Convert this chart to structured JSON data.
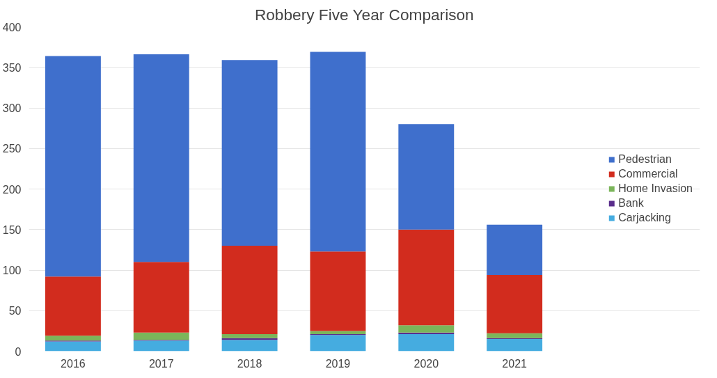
{
  "chart_data": {
    "type": "bar",
    "title": "Robbery Five Year Comparison",
    "stacked": true,
    "categories": [
      "2016",
      "2017",
      "2018",
      "2019",
      "2020",
      "2021"
    ],
    "series": [
      {
        "name": "Carjacking",
        "color": "#45ace0",
        "values": [
          12,
          13,
          14,
          20,
          21,
          15
        ]
      },
      {
        "name": "Bank",
        "color": "#5a2d8c",
        "values": [
          1,
          1,
          2,
          1,
          2,
          1
        ]
      },
      {
        "name": "Home Invasion",
        "color": "#7bb55a",
        "values": [
          6,
          9,
          5,
          4,
          9,
          6
        ]
      },
      {
        "name": "Commercial",
        "color": "#d22c1e",
        "values": [
          73,
          87,
          109,
          98,
          118,
          72
        ]
      },
      {
        "name": "Pedestrian",
        "color": "#3f6fcc",
        "values": [
          272,
          256,
          229,
          246,
          130,
          62
        ]
      }
    ],
    "ylim": [
      0,
      400
    ],
    "yticks": [
      0,
      50,
      100,
      150,
      200,
      250,
      300,
      350,
      400
    ],
    "grid": "y",
    "legend": "right"
  }
}
